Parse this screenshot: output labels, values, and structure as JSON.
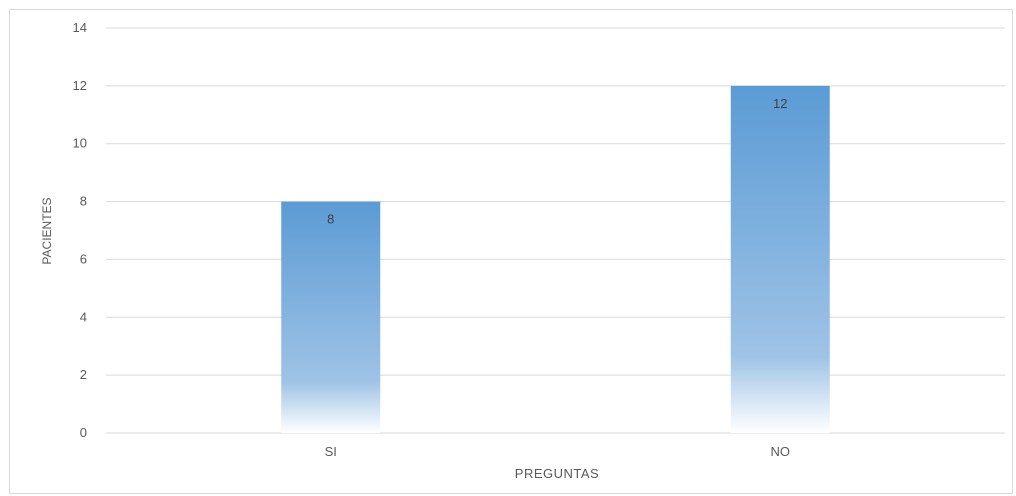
{
  "chart_data": {
    "type": "bar",
    "title": "",
    "xlabel": "PREGUNTAS",
    "ylabel": "PACIENTES",
    "categories": [
      "SI",
      "NO"
    ],
    "values": [
      8,
      12
    ],
    "data_labels": [
      "8",
      "12"
    ],
    "ylim": [
      0,
      14
    ],
    "yticks": [
      "0",
      "2",
      "4",
      "6",
      "8",
      "10",
      "12",
      "14"
    ],
    "grid": true,
    "legend": "none",
    "bar_color_top": "#5b9bd5",
    "bar_color_bottom": "#ffffff",
    "grid_color": "#d9d9d9",
    "text_color": "#595959"
  }
}
